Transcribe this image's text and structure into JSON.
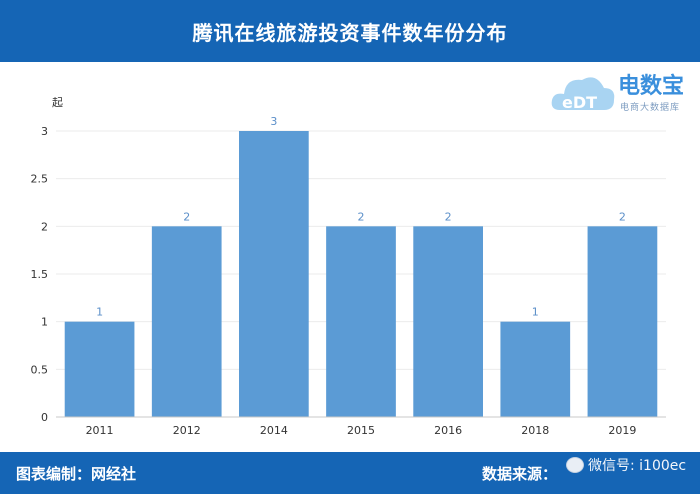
{
  "header": {
    "title": "腾讯在线旅游投资事件数年份分布"
  },
  "footer": {
    "editor": "图表编制：网经社",
    "source": "数据来源：",
    "watermark": "微信号: i100ec"
  },
  "logo": {
    "brand": "电数宝",
    "sub": "电商大数据库"
  },
  "colors": {
    "header": "#1565b5",
    "bar": "#5b9bd5",
    "label": "#5b8fc9"
  },
  "chart_data": {
    "type": "bar",
    "categories": [
      "2011",
      "2012",
      "2014",
      "2015",
      "2016",
      "2018",
      "2019"
    ],
    "values": [
      1,
      2,
      3,
      2,
      2,
      1,
      2
    ],
    "data_labels": [
      "1",
      "2",
      "3",
      "2",
      "2",
      "1",
      "2"
    ],
    "ylabel": "起",
    "ylim": [
      0,
      3
    ],
    "yticks": [
      "0",
      "0.5",
      "1",
      "1.5",
      "2",
      "2.5",
      "3"
    ],
    "grid": true,
    "legend": "none"
  }
}
